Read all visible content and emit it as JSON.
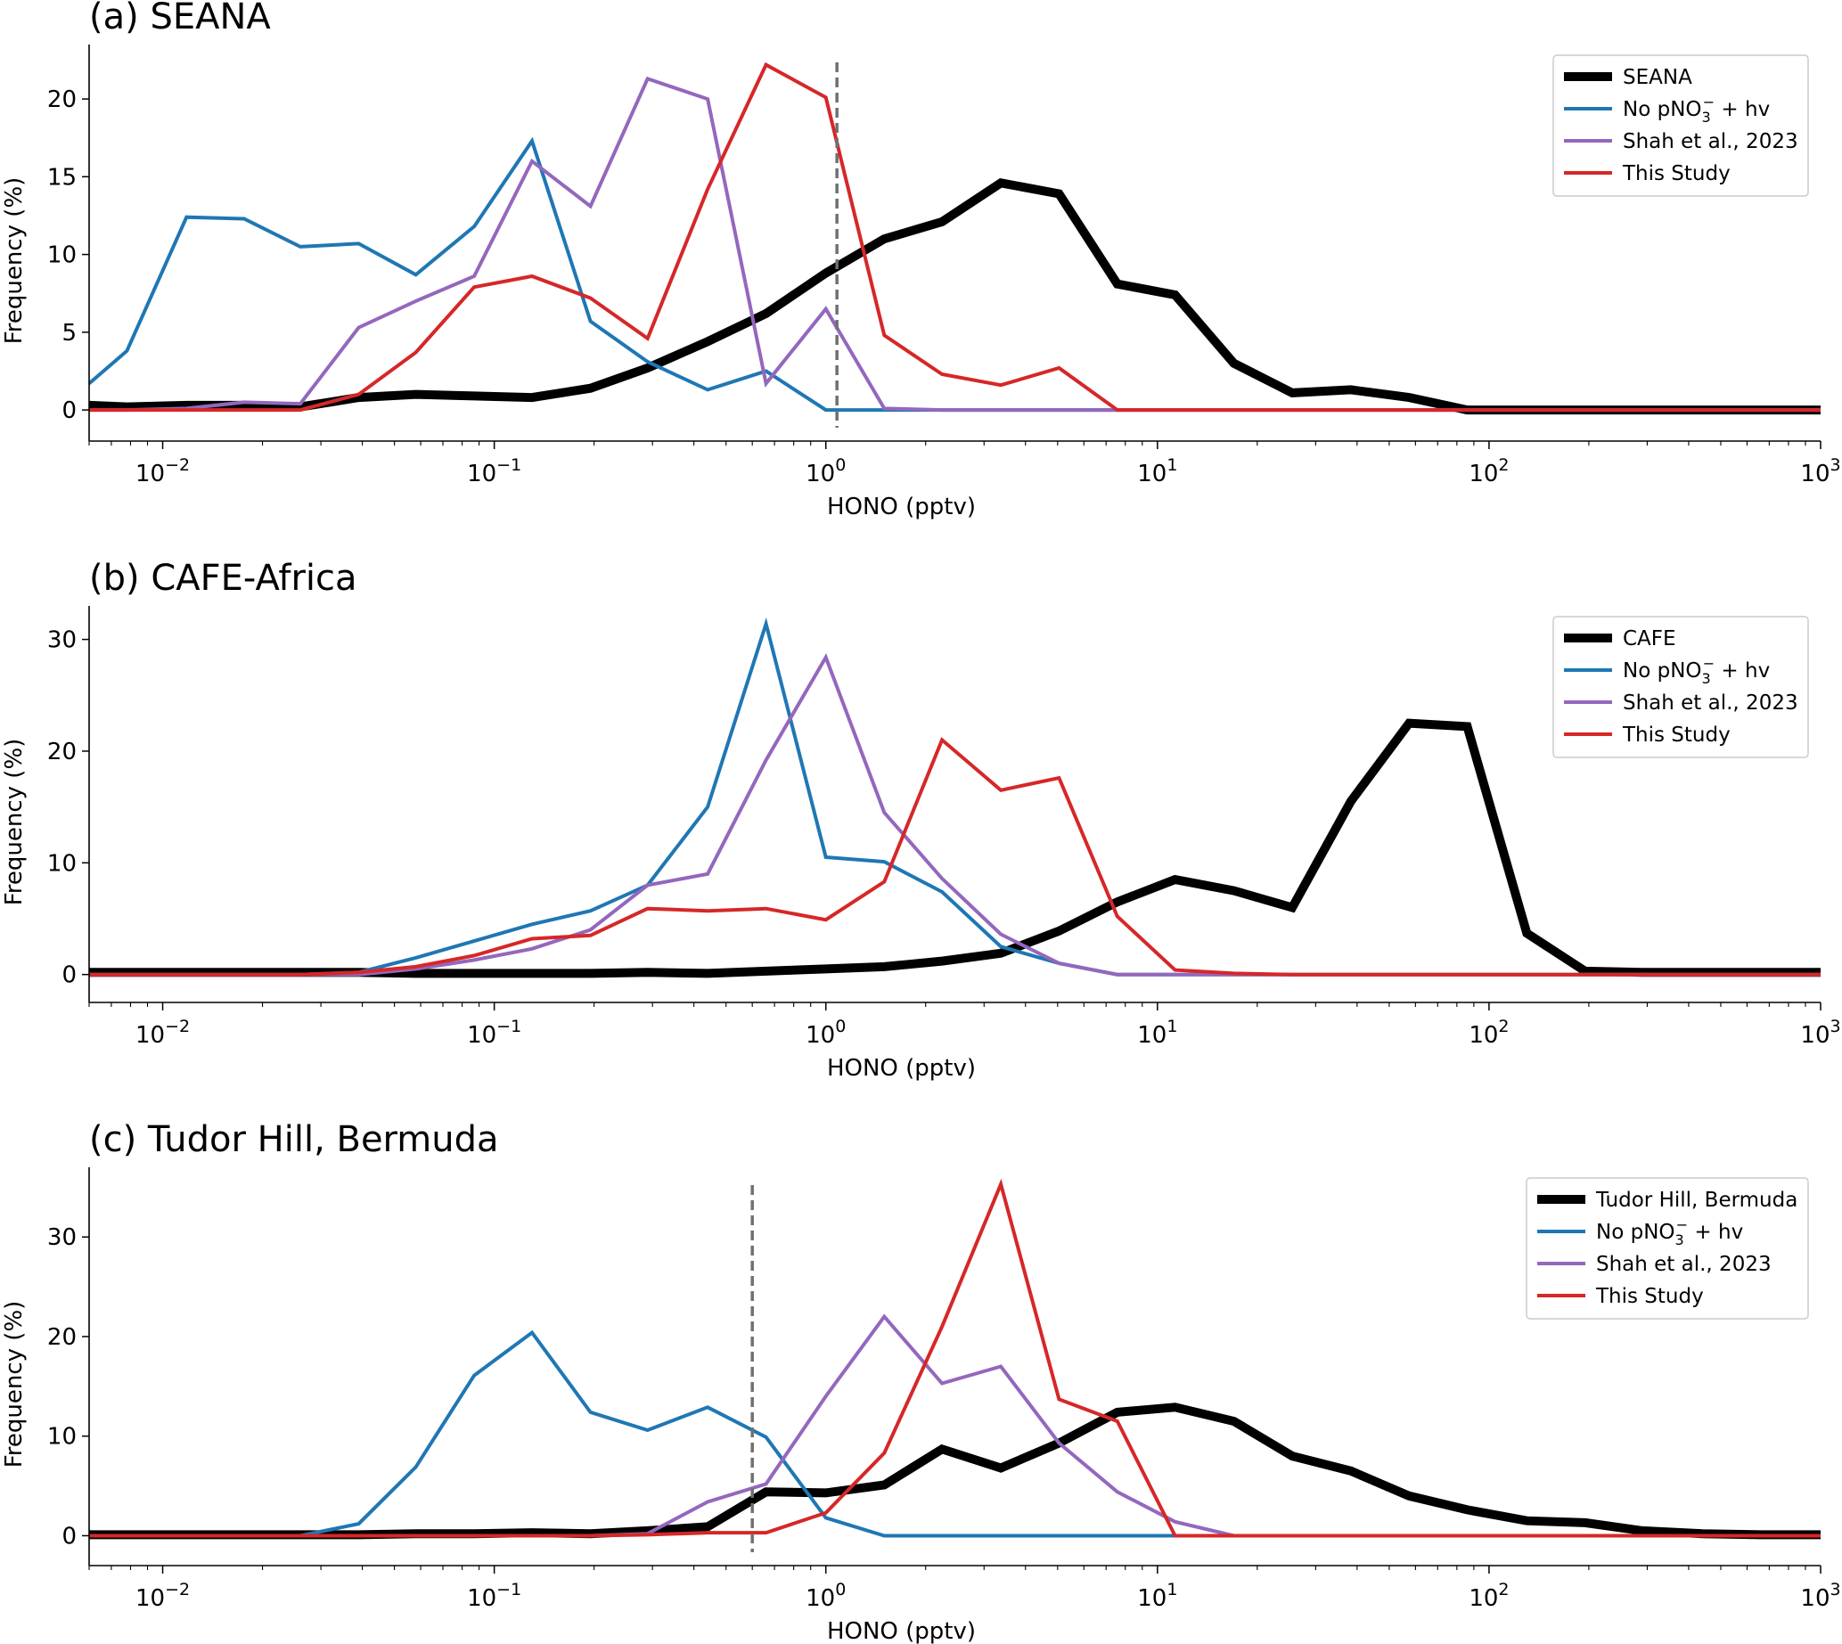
{
  "chart_data": [
    {
      "type": "line",
      "title": "(a) SEANA",
      "xlabel": "HONO (pptv)",
      "ylabel": "Frequency (%)",
      "xscale": "log",
      "xlim": [
        0.006,
        1000
      ],
      "ylim": [
        -2,
        23.5
      ],
      "yticks": [
        0,
        5,
        10,
        15,
        20
      ],
      "xticks": [
        "10^-2",
        "10^-1",
        "10^0",
        "10^1",
        "10^2",
        "10^3"
      ],
      "legend_position": "top-right",
      "vline": 1.08,
      "series": [
        {
          "name": "SEANA",
          "color": "#000000",
          "x": [
            0.006,
            0.0078,
            0.0118,
            0.0176,
            0.026,
            0.039,
            0.058,
            0.087,
            0.13,
            0.195,
            0.29,
            0.44,
            0.66,
            1.0,
            1.5,
            2.24,
            3.37,
            5.05,
            7.57,
            11.3,
            17.0,
            25.5,
            38.3,
            57.4,
            86,
            130,
            195,
            290,
            440,
            660,
            1000
          ],
          "y": [
            0.3,
            0.2,
            0.3,
            0.3,
            0.2,
            0.8,
            1.0,
            0.9,
            0.8,
            1.4,
            2.7,
            4.4,
            6.2,
            8.8,
            11.0,
            12.1,
            14.6,
            13.9,
            8.1,
            7.4,
            3.0,
            1.1,
            1.3,
            0.8,
            0.0,
            0,
            0,
            0,
            0,
            0,
            0
          ]
        },
        {
          "name": "No pNO3- + hv",
          "color": "#1f77b4",
          "x": [
            0.006,
            0.0078,
            0.0118,
            0.0176,
            0.026,
            0.039,
            0.058,
            0.087,
            0.13,
            0.195,
            0.29,
            0.44,
            0.66,
            1.0,
            1.5,
            2.24,
            3.37,
            5.05,
            7.57,
            11.3,
            17.0,
            25.5,
            38.3,
            57.4,
            86,
            130,
            195,
            290,
            440,
            660,
            1000
          ],
          "y": [
            1.7,
            3.8,
            12.4,
            12.3,
            10.5,
            10.7,
            8.7,
            11.8,
            17.3,
            5.7,
            3.1,
            1.3,
            2.5,
            0.0,
            0,
            0,
            0,
            0,
            0,
            0,
            0,
            0,
            0,
            0,
            0,
            0,
            0,
            0,
            0,
            0,
            0
          ]
        },
        {
          "name": "Shah et al., 2023",
          "color": "#9467bd",
          "x": [
            0.006,
            0.0078,
            0.0118,
            0.0176,
            0.026,
            0.039,
            0.058,
            0.087,
            0.13,
            0.195,
            0.29,
            0.44,
            0.66,
            1.0,
            1.5,
            2.24,
            3.37,
            5.05,
            7.57,
            11.3,
            17.0,
            25.5,
            38.3,
            57.4,
            86,
            130,
            195,
            290,
            440,
            660,
            1000
          ],
          "y": [
            0.0,
            0.0,
            0.1,
            0.5,
            0.4,
            5.3,
            7.0,
            8.6,
            16.0,
            13.1,
            21.3,
            20.0,
            1.7,
            6.5,
            0.1,
            0.0,
            0,
            0,
            0,
            0,
            0,
            0,
            0,
            0,
            0,
            0,
            0,
            0,
            0,
            0,
            0
          ]
        },
        {
          "name": "This Study",
          "color": "#d62728",
          "x": [
            0.006,
            0.0078,
            0.0118,
            0.0176,
            0.026,
            0.039,
            0.058,
            0.087,
            0.13,
            0.195,
            0.29,
            0.44,
            0.66,
            1.0,
            1.5,
            2.24,
            3.37,
            5.05,
            7.57,
            11.3,
            17.0,
            25.5,
            38.3,
            57.4,
            86,
            130,
            195,
            290,
            440,
            660,
            1000
          ],
          "y": [
            0.0,
            0.0,
            0.0,
            0.0,
            0.0,
            1.0,
            3.7,
            7.9,
            8.6,
            7.2,
            4.6,
            14.2,
            22.2,
            20.1,
            4.8,
            2.3,
            1.6,
            2.7,
            0.0,
            0,
            0,
            0,
            0,
            0,
            0,
            0,
            0,
            0,
            0,
            0,
            0
          ]
        }
      ]
    },
    {
      "type": "line",
      "title": "(b) CAFE-Africa",
      "xlabel": "HONO (pptv)",
      "ylabel": "Frequency (%)",
      "xscale": "log",
      "xlim": [
        0.006,
        1000
      ],
      "ylim": [
        -2.5,
        33
      ],
      "yticks": [
        0,
        10,
        20,
        30
      ],
      "xticks": [
        "10^-2",
        "10^-1",
        "10^0",
        "10^1",
        "10^2",
        "10^3"
      ],
      "legend_position": "top-right",
      "series": [
        {
          "name": "CAFE",
          "color": "#000000",
          "x": [
            0.006,
            0.0078,
            0.0118,
            0.0176,
            0.026,
            0.039,
            0.058,
            0.087,
            0.13,
            0.195,
            0.29,
            0.44,
            0.66,
            1.0,
            1.5,
            2.24,
            3.37,
            5.05,
            7.57,
            11.3,
            17.0,
            25.5,
            38.3,
            57.4,
            86,
            130,
            195,
            290,
            440,
            660,
            1000
          ],
          "y": [
            0.2,
            0.2,
            0.2,
            0.2,
            0.2,
            0.2,
            0.1,
            0.1,
            0.1,
            0.1,
            0.2,
            0.1,
            0.3,
            0.5,
            0.7,
            1.2,
            1.9,
            3.9,
            6.5,
            8.5,
            7.5,
            6.0,
            15.5,
            22.5,
            22.2,
            3.7,
            0.3,
            0.2,
            0.2,
            0.2,
            0.2
          ]
        },
        {
          "name": "No pNO3- + hv",
          "color": "#1f77b4",
          "x": [
            0.006,
            0.0078,
            0.0118,
            0.0176,
            0.026,
            0.039,
            0.058,
            0.087,
            0.13,
            0.195,
            0.29,
            0.44,
            0.66,
            1.0,
            1.5,
            2.24,
            3.37,
            5.05,
            7.57,
            11.3,
            17.0,
            25.5,
            38.3,
            57.4,
            86,
            130,
            195,
            290,
            440,
            660,
            1000
          ],
          "y": [
            0,
            0,
            0,
            0,
            0,
            0.2,
            1.5,
            3.0,
            4.5,
            5.7,
            8.0,
            15.0,
            31.4,
            10.5,
            10.1,
            7.4,
            2.5,
            1.0,
            0.0,
            0,
            0,
            0,
            0,
            0,
            0,
            0,
            0,
            0,
            0,
            0,
            0
          ]
        },
        {
          "name": "Shah et al., 2023",
          "color": "#9467bd",
          "x": [
            0.006,
            0.0078,
            0.0118,
            0.0176,
            0.026,
            0.039,
            0.058,
            0.087,
            0.13,
            0.195,
            0.29,
            0.44,
            0.66,
            1.0,
            1.5,
            2.24,
            3.37,
            5.05,
            7.57,
            11.3,
            17.0,
            25.5,
            38.3,
            57.4,
            86,
            130,
            195,
            290,
            440,
            660,
            1000
          ],
          "y": [
            0,
            0,
            0,
            0,
            0,
            0,
            0.5,
            1.3,
            2.3,
            4.0,
            8.0,
            9.0,
            19.2,
            28.4,
            14.5,
            8.6,
            3.6,
            1.0,
            0.0,
            0,
            0,
            0,
            0,
            0,
            0,
            0,
            0,
            0,
            0,
            0,
            0
          ]
        },
        {
          "name": "This Study",
          "color": "#d62728",
          "x": [
            0.006,
            0.0078,
            0.0118,
            0.0176,
            0.026,
            0.039,
            0.058,
            0.087,
            0.13,
            0.195,
            0.29,
            0.44,
            0.66,
            1.0,
            1.5,
            2.24,
            3.37,
            5.05,
            7.57,
            11.3,
            17.0,
            25.5,
            38.3,
            57.4,
            86,
            130,
            195,
            290,
            440,
            660,
            1000
          ],
          "y": [
            0,
            0,
            0,
            0,
            0,
            0.2,
            0.7,
            1.7,
            3.2,
            3.5,
            5.9,
            5.7,
            5.9,
            4.9,
            8.3,
            21.0,
            16.5,
            17.6,
            5.2,
            0.4,
            0.1,
            0.0,
            0,
            0,
            0,
            0,
            0,
            0,
            0,
            0,
            0
          ]
        }
      ]
    },
    {
      "type": "line",
      "title": "(c) Tudor Hill, Bermuda",
      "xlabel": "HONO (pptv)",
      "ylabel": "Frequency (%)",
      "xscale": "log",
      "xlim": [
        0.006,
        1000
      ],
      "ylim": [
        -3,
        37
      ],
      "yticks": [
        0,
        10,
        20,
        30
      ],
      "xticks": [
        "10^-2",
        "10^-1",
        "10^0",
        "10^1",
        "10^2",
        "10^3"
      ],
      "legend_position": "top-right",
      "vline": 0.6,
      "series": [
        {
          "name": "Tudor Hill, Bermuda",
          "color": "#000000",
          "x": [
            0.006,
            0.0078,
            0.0118,
            0.0176,
            0.026,
            0.039,
            0.058,
            0.087,
            0.13,
            0.195,
            0.29,
            0.44,
            0.66,
            1.0,
            1.5,
            2.24,
            3.37,
            5.05,
            7.57,
            11.3,
            17.0,
            25.5,
            38.3,
            57.4,
            86,
            130,
            195,
            290,
            440,
            660,
            1000
          ],
          "y": [
            0.1,
            0.1,
            0.1,
            0.1,
            0.1,
            0.1,
            0.2,
            0.2,
            0.3,
            0.2,
            0.5,
            0.9,
            4.4,
            4.3,
            5.1,
            8.7,
            6.8,
            9.3,
            12.4,
            12.9,
            11.5,
            8.0,
            6.5,
            4.0,
            2.6,
            1.5,
            1.3,
            0.5,
            0.2,
            0.1,
            0.1
          ]
        },
        {
          "name": "No pNO3- + hv",
          "color": "#1f77b4",
          "x": [
            0.006,
            0.0078,
            0.0118,
            0.0176,
            0.026,
            0.039,
            0.058,
            0.087,
            0.13,
            0.195,
            0.29,
            0.44,
            0.66,
            1.0,
            1.5,
            2.24,
            3.37,
            5.05,
            7.57,
            11.3,
            17.0,
            25.5,
            38.3,
            57.4,
            86,
            130,
            195,
            290,
            440,
            660,
            1000
          ],
          "y": [
            0,
            0,
            0,
            0,
            0,
            1.2,
            6.9,
            16.1,
            20.4,
            12.4,
            10.6,
            12.9,
            9.9,
            1.8,
            0.0,
            0,
            0,
            0,
            0,
            0,
            0,
            0,
            0,
            0,
            0,
            0,
            0,
            0,
            0,
            0,
            0
          ]
        },
        {
          "name": "Shah et al., 2023",
          "color": "#9467bd",
          "x": [
            0.006,
            0.0078,
            0.0118,
            0.0176,
            0.026,
            0.039,
            0.058,
            0.087,
            0.13,
            0.195,
            0.29,
            0.44,
            0.66,
            1.0,
            1.5,
            2.24,
            3.37,
            5.05,
            7.57,
            11.3,
            17.0,
            25.5,
            38.3,
            57.4,
            86,
            130,
            195,
            290,
            440,
            660,
            1000
          ],
          "y": [
            0,
            0,
            0,
            0,
            0,
            0,
            0,
            0,
            0,
            0,
            0.2,
            3.4,
            5.2,
            14.0,
            22.0,
            15.3,
            17.0,
            9.3,
            4.4,
            1.4,
            0.0,
            0,
            0,
            0,
            0,
            0,
            0,
            0,
            0,
            0,
            0
          ]
        },
        {
          "name": "This Study",
          "color": "#d62728",
          "x": [
            0.006,
            0.0078,
            0.0118,
            0.0176,
            0.026,
            0.039,
            0.058,
            0.087,
            0.13,
            0.195,
            0.29,
            0.44,
            0.66,
            1.0,
            1.5,
            2.24,
            3.37,
            5.05,
            7.57,
            11.3,
            17.0,
            25.5,
            38.3,
            57.4,
            86,
            130,
            195,
            290,
            440,
            660,
            1000
          ],
          "y": [
            0,
            0,
            0,
            0,
            0,
            0,
            0,
            0,
            0,
            0,
            0.1,
            0.3,
            0.3,
            2.3,
            8.3,
            21.0,
            35.3,
            13.7,
            11.5,
            0.0,
            0,
            0,
            0,
            0,
            0,
            0,
            0,
            0,
            0,
            0,
            0
          ]
        }
      ]
    }
  ]
}
